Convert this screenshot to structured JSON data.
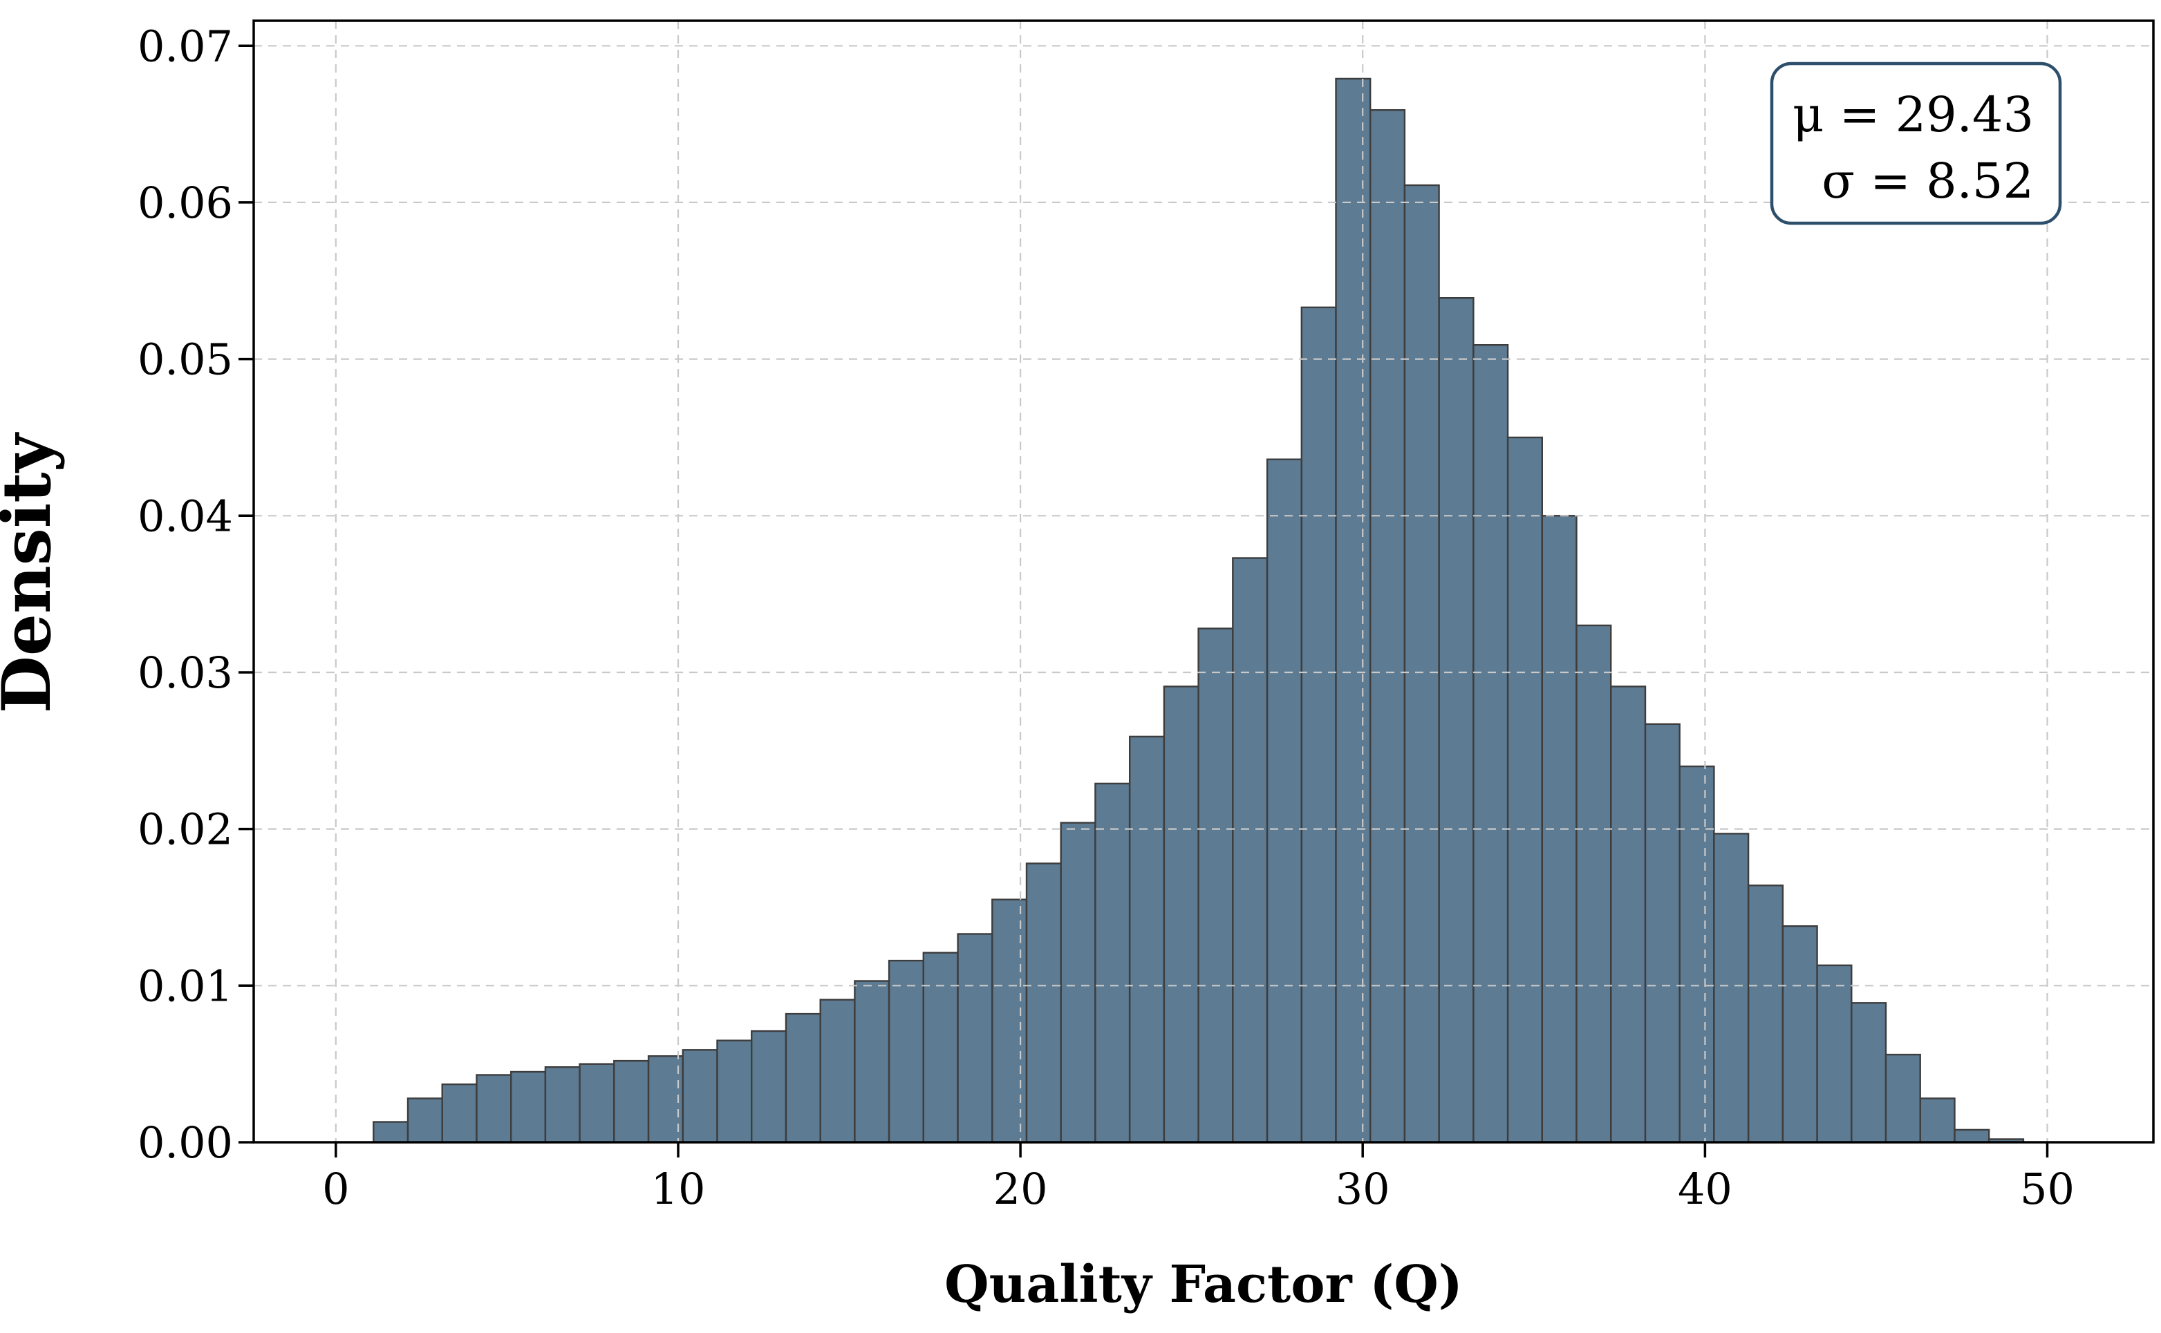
{
  "chart_data": {
    "type": "bar",
    "subtype": "histogram",
    "title": "",
    "xlabel": "Quality Factor (Q)",
    "ylabel": "Density",
    "bin_start": 1.1,
    "bin_width": 1.0042,
    "densities": [
      0.0013,
      0.0028,
      0.0037,
      0.0043,
      0.0045,
      0.0048,
      0.005,
      0.0052,
      0.0055,
      0.0059,
      0.0065,
      0.0071,
      0.0082,
      0.0091,
      0.0103,
      0.0116,
      0.0121,
      0.0133,
      0.0155,
      0.0178,
      0.0204,
      0.0229,
      0.0259,
      0.0291,
      0.0328,
      0.0373,
      0.0436,
      0.0533,
      0.0679,
      0.0659,
      0.0611,
      0.0539,
      0.0509,
      0.045,
      0.04,
      0.033,
      0.0291,
      0.0267,
      0.024,
      0.0197,
      0.0164,
      0.0138,
      0.0113,
      0.0089,
      0.0056,
      0.0028,
      0.0008,
      0.0002
    ],
    "xlim": [
      -2.4,
      53.1
    ],
    "ylim": [
      0,
      0.0716
    ],
    "xticks": [
      {
        "value": 0,
        "label": "0"
      },
      {
        "value": 10,
        "label": "10"
      },
      {
        "value": 20,
        "label": "20"
      },
      {
        "value": 30,
        "label": "30"
      },
      {
        "value": 40,
        "label": "40"
      },
      {
        "value": 50,
        "label": "50"
      }
    ],
    "yticks": [
      {
        "value": 0.0,
        "label": "0.00"
      },
      {
        "value": 0.01,
        "label": "0.01"
      },
      {
        "value": 0.02,
        "label": "0.02"
      },
      {
        "value": 0.03,
        "label": "0.03"
      },
      {
        "value": 0.04,
        "label": "0.04"
      },
      {
        "value": 0.05,
        "label": "0.05"
      },
      {
        "value": 0.06,
        "label": "0.06"
      },
      {
        "value": 0.07,
        "label": "0.07"
      }
    ],
    "grid": {
      "on": true,
      "style": "dashed",
      "above_bars": true
    },
    "annotation": {
      "mu": "μ = 29.43",
      "sigma": "σ = 8.52"
    },
    "colors": {
      "bar_fill": "#5d7b93",
      "bar_edge": "#3d3d3d",
      "grid": "#c9c9c9",
      "spine": "#000000",
      "stats_box_border": "#2e4f6b",
      "stats_box_fill": "#ffffff",
      "text": "#000000"
    }
  }
}
